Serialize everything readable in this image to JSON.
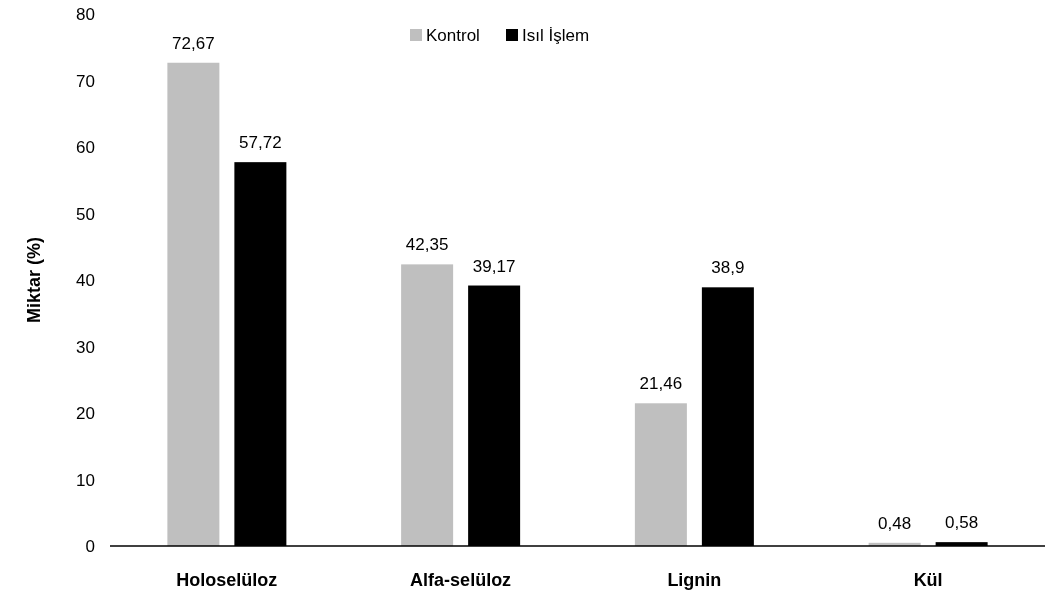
{
  "chart_data": {
    "type": "bar",
    "ylabel": "Miktar (%)",
    "categories": [
      "Holoselüloz",
      "Alfa-selüloz",
      "Lignin",
      "Kül"
    ],
    "series": [
      {
        "name": "Kontrol",
        "color": "#bfbfbf",
        "values": [
          72.67,
          42.35,
          21.46,
          0.48
        ],
        "value_labels": [
          "72,67",
          "42,35",
          "21,46",
          "0,48"
        ]
      },
      {
        "name": "Isıl İşlem",
        "color": "#000000",
        "values": [
          57.72,
          39.17,
          38.9,
          0.58
        ],
        "value_labels": [
          "57,72",
          "39,17",
          "38,9",
          "0,58"
        ]
      }
    ],
    "ylim": [
      0,
      80
    ],
    "yticks": [
      0,
      10,
      20,
      30,
      40,
      50,
      60,
      70,
      80
    ],
    "grid": false,
    "legend": "top"
  }
}
